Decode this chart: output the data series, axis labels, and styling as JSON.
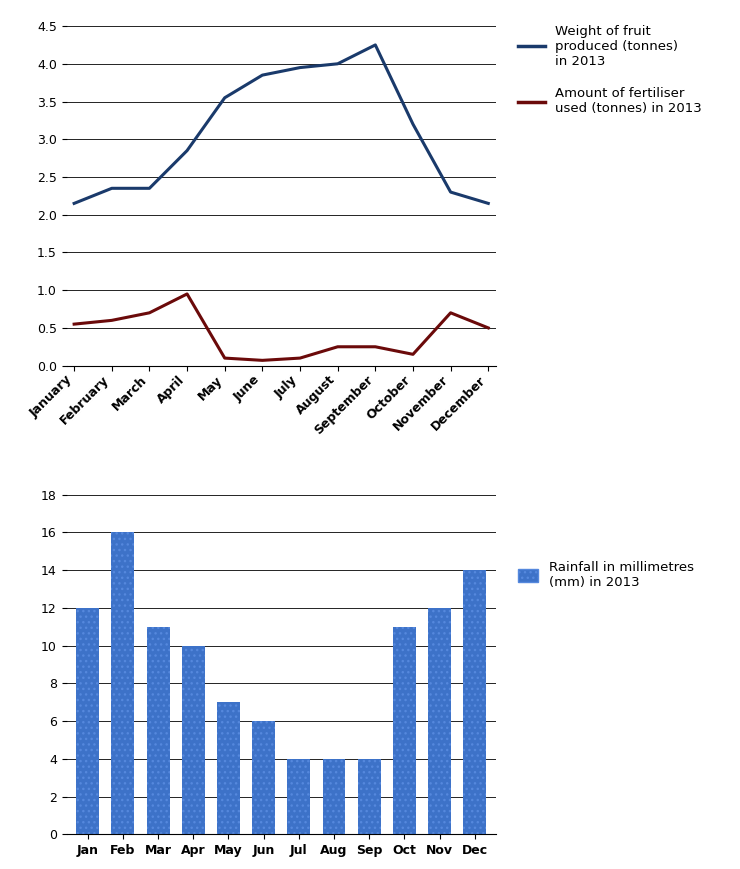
{
  "line_months": [
    "January",
    "February",
    "March",
    "April",
    "May",
    "June",
    "July",
    "August",
    "September",
    "October",
    "November",
    "December"
  ],
  "fruit_weight": [
    2.15,
    2.35,
    2.35,
    2.85,
    3.55,
    3.85,
    3.95,
    4.0,
    4.25,
    3.2,
    2.3,
    2.15
  ],
  "fertiliser": [
    0.55,
    0.6,
    0.7,
    0.95,
    0.1,
    0.07,
    0.1,
    0.25,
    0.25,
    0.15,
    0.7,
    0.5
  ],
  "fruit_color": "#1a3a6b",
  "fertiliser_color": "#6b0a0a",
  "fruit_label": "Weight of fruit\nproduced (tonnes)\nin 2013",
  "fertiliser_label": "Amount of fertiliser\nused (tonnes) in 2013",
  "line_ylim": [
    0,
    4.5
  ],
  "line_yticks": [
    0,
    0.5,
    1,
    1.5,
    2,
    2.5,
    3,
    3.5,
    4,
    4.5
  ],
  "bar_months": [
    "Jan",
    "Feb",
    "Mar",
    "Apr",
    "May",
    "Jun",
    "Jul",
    "Aug",
    "Sep",
    "Oct",
    "Nov",
    "Dec"
  ],
  "rainfall": [
    12,
    16,
    11,
    10,
    7,
    6,
    4,
    4,
    4,
    11,
    12,
    14
  ],
  "bar_color": "#3d72c8",
  "bar_label": "Rainfall in millimetres\n(mm) in 2013",
  "bar_ylim": [
    0,
    18
  ],
  "bar_yticks": [
    0,
    2,
    4,
    6,
    8,
    10,
    12,
    14,
    16,
    18
  ],
  "background_color": "#ffffff",
  "legend1_fontsize": 9.5,
  "legend2_fontsize": 9.5,
  "tick_fontsize": 9,
  "tick_fontweight": "bold"
}
